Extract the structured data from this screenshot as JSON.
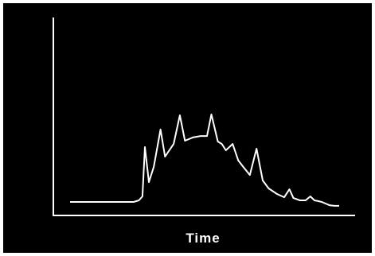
{
  "chart_data": {
    "type": "line",
    "title": "",
    "xlabel": "Time",
    "ylabel": "",
    "xlim": [
      0,
      100
    ],
    "ylim": [
      0,
      100
    ],
    "grid": false,
    "colors": {
      "background": "#000000",
      "line": "#ffffff",
      "axes": "#ffffff"
    },
    "series": [
      {
        "x": [
          0,
          4.9,
          9.8,
          14.6,
          19.5,
          23.6,
          25.6,
          26.9,
          27.8,
          29.3,
          31.1,
          33.6,
          35.3,
          38.5,
          40.8,
          42.7,
          45.6,
          48.5,
          50.9,
          52.5,
          54.9,
          56.4,
          57.9,
          60.4,
          62.5,
          64.6,
          66.8,
          69.3,
          71.6,
          73.8,
          76.9,
          79.6,
          81.5,
          83.0,
          85.4,
          87.5,
          89.3,
          90.8,
          92.3,
          93.5,
          94.9,
          96.4,
          98.2,
          100
        ],
        "y": [
          0,
          0,
          0,
          0,
          0,
          0,
          1.4,
          4.8,
          47.6,
          17.2,
          30.3,
          62.8,
          39.3,
          50.3,
          75.2,
          53.1,
          55.9,
          57.2,
          57.2,
          75.9,
          52.4,
          50.3,
          44.8,
          50.3,
          35.9,
          29.7,
          23.4,
          46.2,
          18.6,
          11.7,
          6.9,
          4.1,
          11.0,
          3.4,
          1.4,
          1.4,
          4.8,
          1.4,
          0.7,
          0,
          -1.4,
          -2.8,
          -3.4,
          -3.4
        ]
      }
    ]
  }
}
